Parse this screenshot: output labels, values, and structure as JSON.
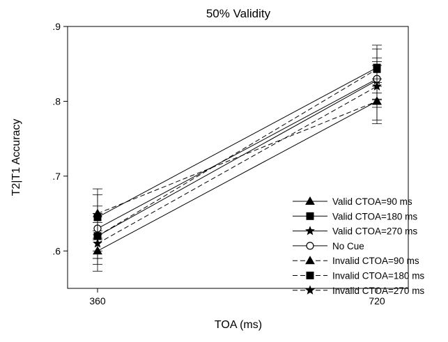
{
  "chart_data": {
    "type": "line",
    "title": "50% Validity",
    "xlabel": "TOA (ms)",
    "ylabel": "T2|T1 Accuracy",
    "x": [
      360,
      720
    ],
    "x_tick_labels": [
      "360",
      "720"
    ],
    "ylim": [
      0.55,
      0.9
    ],
    "y_ticks": [
      0.6,
      0.7,
      0.8,
      0.9
    ],
    "y_tick_labels": [
      ".6",
      ".7",
      ".8",
      ".9"
    ],
    "grid": false,
    "legend_position": "bottom-right",
    "error_bars": true,
    "series": [
      {
        "name": "Valid CTOA=90 ms",
        "values": [
          0.6,
          0.8
        ],
        "err": [
          0.027,
          0.025
        ],
        "marker": "triangle",
        "line": "solid",
        "fill": "#000000"
      },
      {
        "name": "Valid CTOA=180 ms",
        "values": [
          0.645,
          0.845
        ],
        "err": [
          0.03,
          0.025
        ],
        "marker": "square",
        "line": "solid",
        "fill": "#000000"
      },
      {
        "name": "Valid CTOA=270 ms",
        "values": [
          0.62,
          0.828
        ],
        "err": [
          0.03,
          0.025
        ],
        "marker": "star",
        "line": "solid",
        "fill": "#000000"
      },
      {
        "name": "No Cue",
        "values": [
          0.63,
          0.83
        ],
        "err": [
          0.03,
          0.028
        ],
        "marker": "circle",
        "line": "solid",
        "fill": "#ffffff"
      },
      {
        "name": "Invalid CTOA=90 ms",
        "values": [
          0.65,
          0.8
        ],
        "err": [
          0.033,
          0.03
        ],
        "marker": "triangle",
        "line": "dashed",
        "fill": "#000000"
      },
      {
        "name": "Invalid CTOA=180 ms",
        "values": [
          0.62,
          0.843
        ],
        "err": [
          0.03,
          0.032
        ],
        "marker": "square",
        "line": "dashed",
        "fill": "#000000"
      },
      {
        "name": "Invalid CTOA=270 ms",
        "values": [
          0.61,
          0.82
        ],
        "err": [
          0.028,
          0.028
        ],
        "marker": "star",
        "line": "dashed",
        "fill": "#000000"
      }
    ]
  }
}
